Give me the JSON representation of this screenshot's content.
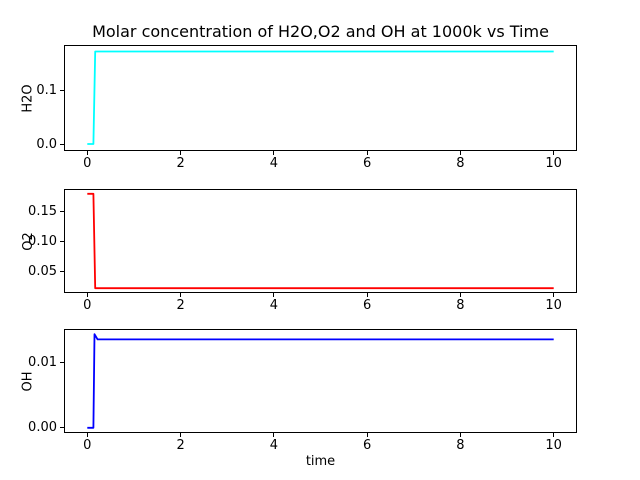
{
  "figure": {
    "title": "Molar concentration of H2O,O2 and OH at 1000k vs Time",
    "xlabel": "time",
    "background_color": "#ffffff",
    "frame_color": "#000000"
  },
  "chart_data": {
    "type": "line",
    "title": "Molar concentration of H2O,O2 and OH at 1000k vs Time",
    "xlabel": "time",
    "grid": false,
    "legend": false,
    "subplots": [
      {
        "ylabel": "H2O",
        "series_name": "H2O molar concentration",
        "color": "#00ffff",
        "xlim": [
          -0.5,
          10.5
        ],
        "ylim": [
          -0.012,
          0.184
        ],
        "xticks": [
          0,
          2,
          4,
          6,
          8,
          10
        ],
        "xtick_labels": [
          "0",
          "2",
          "4",
          "6",
          "8",
          "10"
        ],
        "yticks": [
          0.0,
          0.1
        ],
        "ytick_labels": [
          "0.0",
          "0.1"
        ],
        "x": [
          0,
          0.13,
          0.17,
          10
        ],
        "y": [
          0.001,
          0.001,
          0.172,
          0.172
        ]
      },
      {
        "ylabel": "O2",
        "series_name": "O2 molar concentration",
        "color": "#ff0000",
        "xlim": [
          -0.5,
          10.5
        ],
        "ylim": [
          0.014,
          0.188
        ],
        "xticks": [
          0,
          2,
          4,
          6,
          8,
          10
        ],
        "xtick_labels": [
          "0",
          "2",
          "4",
          "6",
          "8",
          "10"
        ],
        "yticks": [
          0.05,
          0.1,
          0.15
        ],
        "ytick_labels": [
          "0.05",
          "0.10",
          "0.15"
        ],
        "x": [
          0,
          0.13,
          0.17,
          10
        ],
        "y": [
          0.18,
          0.18,
          0.022,
          0.022
        ]
      },
      {
        "ylabel": "OH",
        "series_name": "OH molar concentration",
        "color": "#0000ff",
        "xlim": [
          -0.5,
          10.5
        ],
        "ylim": [
          -0.0008,
          0.0152
        ],
        "xticks": [
          0,
          2,
          4,
          6,
          8,
          10
        ],
        "xtick_labels": [
          "0",
          "2",
          "4",
          "6",
          "8",
          "10"
        ],
        "yticks": [
          0.0,
          0.01
        ],
        "ytick_labels": [
          "0.00",
          "0.01"
        ],
        "x": [
          0,
          0.13,
          0.155,
          0.22,
          10
        ],
        "y": [
          0,
          0,
          0.0144,
          0.0136,
          0.0136
        ]
      }
    ]
  }
}
